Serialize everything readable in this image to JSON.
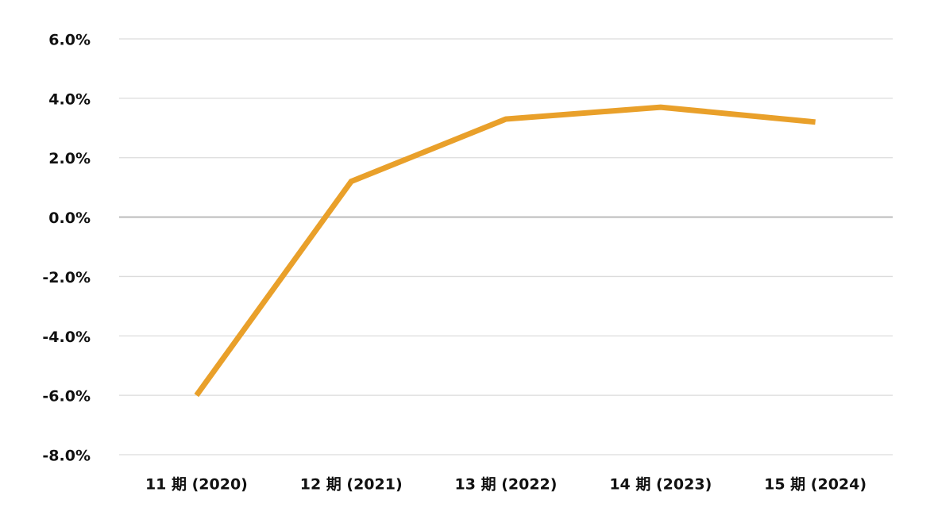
{
  "chart_data": {
    "type": "line",
    "categories": [
      "11 期 (2020)",
      "12 期 (2021)",
      "13 期 (2022)",
      "14 期 (2023)",
      "15 期 (2024)"
    ],
    "series": [
      {
        "color": "#e9a02a",
        "values": [
          -6.0,
          1.2,
          3.3,
          3.7,
          3.2
        ]
      }
    ],
    "ylim": [
      -8,
      6
    ],
    "yticks": [
      {
        "value": -8,
        "label": "-8.0%"
      },
      {
        "value": -6,
        "label": "-6.0%"
      },
      {
        "value": -4,
        "label": "-4.0%"
      },
      {
        "value": -2,
        "label": "-2.0%"
      },
      {
        "value": 0,
        "label": "0.0%"
      },
      {
        "value": 2,
        "label": "2.0%"
      },
      {
        "value": 4,
        "label": "4.0%"
      },
      {
        "value": 6,
        "label": "6.0%"
      }
    ],
    "grid": true
  }
}
